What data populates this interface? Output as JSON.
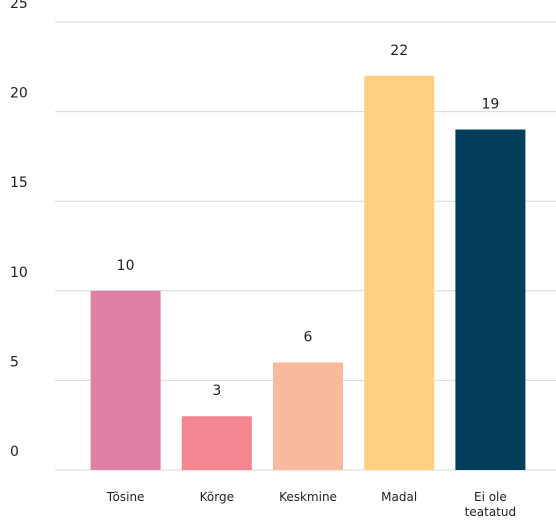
{
  "chart_data": {
    "type": "bar",
    "categories": [
      "Tõsine",
      "Kõrge",
      "Keskmine",
      "Madal",
      "Ei ole teatatud"
    ],
    "values": [
      10,
      3,
      6,
      22,
      19
    ],
    "colors": [
      "#e07fa6",
      "#f4868f",
      "#f9b99c",
      "#ffd080",
      "#023e5b"
    ],
    "ylim": [
      0,
      25
    ],
    "yticks": [
      0,
      5,
      10,
      15,
      20,
      25
    ],
    "grid": true
  }
}
